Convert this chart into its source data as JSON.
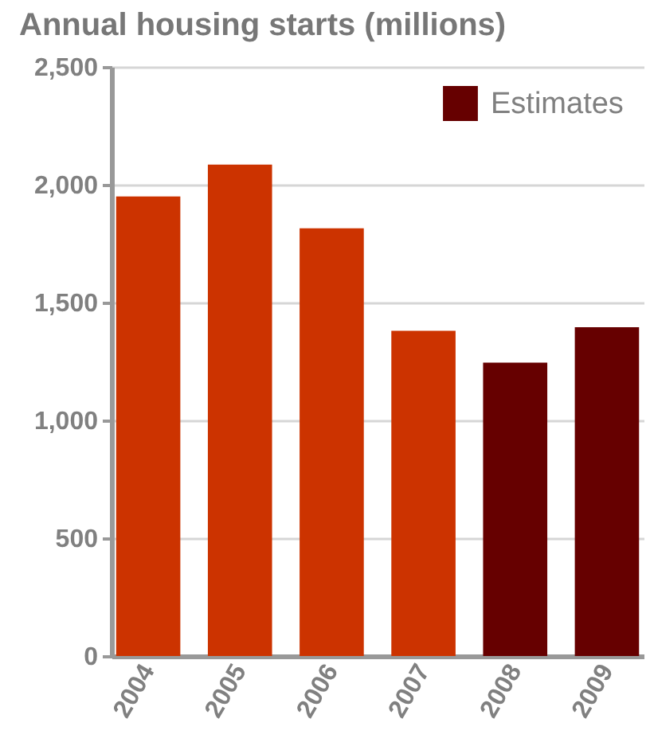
{
  "chart_data": {
    "type": "bar",
    "title": "Annual housing starts (millions)",
    "categories": [
      "2004",
      "2005",
      "2006",
      "2007",
      "2008",
      "2009"
    ],
    "series": [
      {
        "color": "#cc3300",
        "values": [
          1950,
          2085,
          1815,
          1380,
          null,
          null
        ]
      },
      {
        "name": "Estimates",
        "color": "#660000",
        "values": [
          null,
          null,
          null,
          null,
          1245,
          1395
        ]
      }
    ],
    "ylim": [
      0,
      2500
    ],
    "yticks": [
      0,
      500,
      {
        "value": 1000,
        "label": "1,000"
      },
      {
        "value": 1500,
        "label": "1,500"
      },
      {
        "value": 2000,
        "label": "2,000"
      },
      {
        "value": 2500,
        "label": "2,500"
      }
    ],
    "grid": "y",
    "legend": "top right"
  }
}
